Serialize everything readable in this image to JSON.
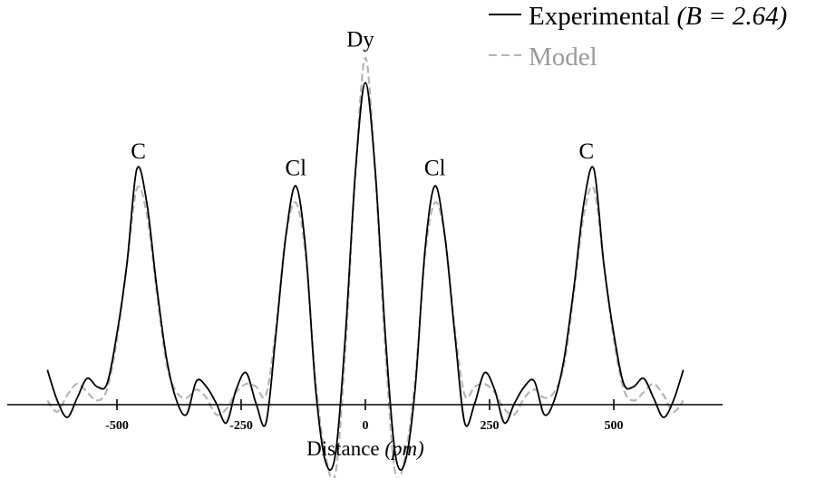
{
  "chart_data": {
    "type": "line",
    "xlabel_main": "Distance",
    "xlabel_unit": "(pm)",
    "ylabel": "",
    "xlim": [
      -640,
      640
    ],
    "ylim": [
      -0.5,
      1.05
    ],
    "x_ticks": [
      -500,
      -250,
      0,
      250,
      500
    ],
    "x_tick_labels": [
      "-500",
      "-250",
      "0",
      "250",
      "500"
    ],
    "grid": false,
    "legend_position": "top-right",
    "legend": {
      "experimental_prefix": "Experimental ",
      "experimental_param": "(B = 2.64)",
      "model": "Model"
    },
    "series": [
      {
        "name": "Experimental (B = 2.64)",
        "style": "solid",
        "color": "#000000",
        "x": [
          -640,
          -620,
          -600,
          -580,
          -560,
          -540,
          -520,
          -500,
          -480,
          -460,
          -440,
          -420,
          -400,
          -380,
          -360,
          -340,
          -320,
          -300,
          -280,
          -260,
          -240,
          -220,
          -200,
          -180,
          -160,
          -140,
          -120,
          -100,
          -80,
          -60,
          -40,
          -20,
          0,
          20,
          40,
          60,
          80,
          100,
          120,
          140,
          160,
          180,
          200,
          220,
          240,
          260,
          280,
          300,
          320,
          340,
          360,
          380,
          400,
          420,
          440,
          460,
          480,
          500,
          520,
          540,
          560,
          580,
          600,
          620,
          640
        ],
        "y": [
          -0.08,
          -0.19,
          -0.25,
          -0.18,
          -0.11,
          -0.14,
          -0.13,
          0.05,
          0.3,
          0.64,
          0.52,
          0.22,
          -0.04,
          -0.19,
          -0.24,
          -0.12,
          -0.14,
          -0.2,
          -0.27,
          -0.15,
          -0.09,
          -0.2,
          -0.27,
          0.05,
          0.4,
          0.58,
          0.35,
          -0.15,
          -0.41,
          -0.38,
          0.05,
          0.63,
          0.95,
          0.63,
          0.05,
          -0.38,
          -0.41,
          -0.15,
          0.35,
          0.58,
          0.4,
          0.05,
          -0.27,
          -0.2,
          -0.09,
          -0.15,
          -0.27,
          -0.2,
          -0.14,
          -0.12,
          -0.24,
          -0.19,
          -0.04,
          0.22,
          0.52,
          0.64,
          0.3,
          0.05,
          -0.13,
          -0.14,
          -0.11,
          -0.18,
          -0.25,
          -0.19,
          -0.08
        ]
      },
      {
        "name": "Model",
        "style": "dashed",
        "color": "#b5b5b5",
        "x": [
          -640,
          -620,
          -600,
          -580,
          -560,
          -540,
          -520,
          -500,
          -480,
          -460,
          -440,
          -420,
          -400,
          -380,
          -360,
          -340,
          -320,
          -300,
          -280,
          -260,
          -240,
          -220,
          -200,
          -180,
          -160,
          -140,
          -120,
          -100,
          -80,
          -60,
          -40,
          -20,
          0,
          20,
          40,
          60,
          80,
          100,
          120,
          140,
          160,
          180,
          200,
          220,
          240,
          260,
          280,
          300,
          320,
          340,
          360,
          380,
          400,
          420,
          440,
          460,
          480,
          500,
          520,
          540,
          560,
          580,
          600,
          620,
          640
        ],
        "y": [
          -0.19,
          -0.23,
          -0.17,
          -0.13,
          -0.16,
          -0.19,
          -0.15,
          0.03,
          0.3,
          0.57,
          0.48,
          0.2,
          -0.06,
          -0.16,
          -0.18,
          -0.15,
          -0.18,
          -0.24,
          -0.22,
          -0.16,
          -0.13,
          -0.14,
          -0.17,
          0.07,
          0.4,
          0.52,
          0.33,
          -0.12,
          -0.39,
          -0.45,
          0.0,
          0.62,
          1.04,
          0.62,
          0.0,
          -0.45,
          -0.39,
          -0.12,
          0.33,
          0.52,
          0.4,
          0.07,
          -0.17,
          -0.14,
          -0.13,
          -0.16,
          -0.22,
          -0.24,
          -0.18,
          -0.15,
          -0.18,
          -0.16,
          -0.06,
          0.2,
          0.48,
          0.57,
          0.3,
          0.03,
          -0.15,
          -0.19,
          -0.16,
          -0.13,
          -0.17,
          -0.23,
          -0.19
        ]
      }
    ],
    "annotations": [
      {
        "text": "C",
        "x": -457,
        "y": 0.64
      },
      {
        "text": "Cl",
        "x": -140,
        "y": 0.58
      },
      {
        "text": "Dy",
        "x": -10,
        "y": 1.04
      },
      {
        "text": "Cl",
        "x": 140,
        "y": 0.58
      },
      {
        "text": "C",
        "x": 445,
        "y": 0.64
      }
    ]
  }
}
